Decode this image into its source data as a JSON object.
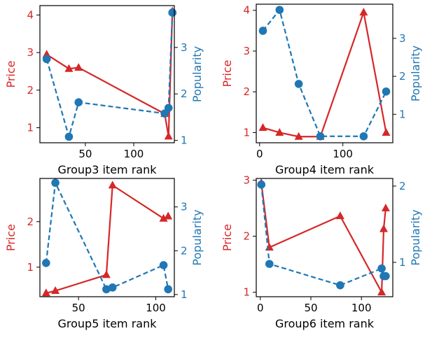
{
  "colors": {
    "price": "#d62728",
    "popularity": "#1f77b4",
    "axis": "#000000"
  },
  "chart_data": [
    {
      "type": "line",
      "xlabel": "Group3 item rank",
      "ylabel": "Price",
      "y2label": "Popularity",
      "xlim": [
        3,
        142
      ],
      "ylim": [
        0.6,
        4.25
      ],
      "y2lim": [
        0.95,
        3.9
      ],
      "xticks": [
        50,
        100
      ],
      "yticks": [
        1,
        2,
        3,
        4
      ],
      "y2ticks": [
        1,
        2,
        3
      ],
      "series": [
        {
          "axis": "left",
          "marker": "triangle",
          "style": "solid",
          "x": [
            10,
            33,
            43,
            132,
            136,
            140
          ],
          "y": [
            2.95,
            2.57,
            2.6,
            1.37,
            0.77,
            4.1
          ]
        },
        {
          "axis": "right",
          "marker": "circle",
          "style": "dashed",
          "x": [
            10,
            33,
            43,
            132,
            136,
            140
          ],
          "y": [
            2.75,
            1.08,
            1.82,
            1.58,
            1.7,
            3.75
          ]
        }
      ]
    },
    {
      "type": "line",
      "xlabel": "Group4 item rank",
      "ylabel": "Price",
      "y2label": "Popularity",
      "xlim": [
        -4,
        160
      ],
      "ylim": [
        0.75,
        4.15
      ],
      "y2lim": [
        0.25,
        3.9
      ],
      "xticks": [
        0,
        100
      ],
      "yticks": [
        1,
        2,
        3,
        4
      ],
      "y2ticks": [
        1,
        2,
        3
      ],
      "series": [
        {
          "axis": "left",
          "marker": "triangle",
          "style": "solid",
          "x": [
            4,
            24,
            47,
            73,
            125,
            152
          ],
          "y": [
            1.12,
            1.0,
            0.9,
            0.9,
            3.95,
            1.0
          ]
        },
        {
          "axis": "right",
          "marker": "circle",
          "style": "dashed",
          "x": [
            4,
            24,
            47,
            73,
            125,
            152
          ],
          "y": [
            3.2,
            3.75,
            1.8,
            0.42,
            0.42,
            1.6
          ]
        }
      ]
    },
    {
      "type": "line",
      "xlabel": "Group5 item rank",
      "ylabel": "Price",
      "y2label": "Popularity",
      "xlim": [
        25,
        112
      ],
      "ylim": [
        0.35,
        2.95
      ],
      "y2lim": [
        0.95,
        3.65
      ],
      "xticks": [
        50,
        100
      ],
      "yticks": [
        1,
        2
      ],
      "y2ticks": [
        1,
        2,
        3
      ],
      "series": [
        {
          "axis": "left",
          "marker": "triangle",
          "style": "solid",
          "x": [
            29,
            35,
            68,
            72,
            105,
            108
          ],
          "y": [
            0.43,
            0.48,
            0.83,
            2.8,
            2.07,
            2.12
          ]
        },
        {
          "axis": "right",
          "marker": "circle",
          "style": "dashed",
          "x": [
            29,
            35,
            68,
            72,
            105,
            108
          ],
          "y": [
            1.72,
            3.55,
            1.12,
            1.16,
            1.67,
            1.12
          ]
        }
      ]
    },
    {
      "type": "line",
      "xlabel": "Group6 item rank",
      "ylabel": "Price",
      "y2label": "Popularity",
      "xlim": [
        -4,
        131
      ],
      "ylim": [
        0.92,
        3.03
      ],
      "y2lim": [
        0.55,
        2.1
      ],
      "xticks": [
        0,
        50,
        100
      ],
      "yticks": [
        1,
        2,
        3
      ],
      "y2ticks": [
        1,
        2
      ],
      "series": [
        {
          "axis": "left",
          "marker": "triangle",
          "style": "solid",
          "x": [
            1,
            9,
            79,
            120,
            122,
            124
          ],
          "y": [
            2.95,
            1.8,
            2.36,
            1.0,
            2.13,
            2.5
          ]
        },
        {
          "axis": "right",
          "marker": "circle",
          "style": "dashed",
          "x": [
            1,
            9,
            79,
            120,
            122,
            124
          ],
          "y": [
            2.02,
            0.98,
            0.7,
            0.92,
            0.82,
            0.82
          ]
        }
      ]
    }
  ]
}
